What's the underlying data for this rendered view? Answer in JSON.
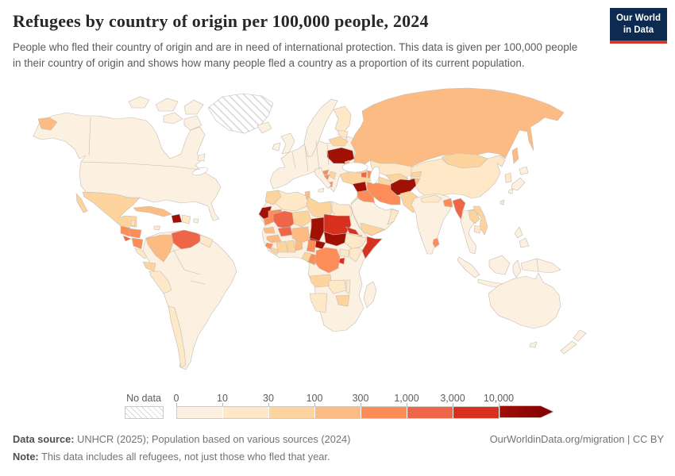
{
  "header": {
    "title": "Refugees by country of origin per 100,000 people, 2024",
    "subtitle": "People who fled their country of origin and are in need of international protection. This data is given per 100,000 people in their country of origin and shows how many people fled a country as a proportion of its current population.",
    "logo": {
      "line1": "Our World",
      "line2": "in Data"
    }
  },
  "legend": {
    "no_data_label": "No data",
    "ticks": [
      "0",
      "10",
      "30",
      "100",
      "300",
      "1,000",
      "3,000",
      "10,000"
    ]
  },
  "colors": {
    "bins": [
      "#fcf0e0",
      "#fee8c8",
      "#fdd49e",
      "#fdbb84",
      "#fc8d59",
      "#ef6548",
      "#d7301f",
      "#a01005"
    ],
    "arrow_tip": "#7f0000",
    "border": "#c3bdb4",
    "sea": "#ffffff",
    "no_data_stroke": "#d8d8d6",
    "logo_bg": "#0d2b51",
    "logo_stripe": "#d0392b"
  },
  "footer": {
    "data_source_label": "Data source:",
    "data_source_text": " UNHCR (2025); Population based on various sources (2024)",
    "note_label": "Note:",
    "note_text": " This data includes all refugees, not just those who fled that year.",
    "link": "OurWorldinData.org/migration | CC BY"
  },
  "chart_data": {
    "type": "heatmap",
    "subtype": "choropleth-world-map",
    "title": "Refugees by country of origin per 100,000 people, 2024",
    "unit": "refugees per 100,000 people of origin-country population",
    "scale": "log-binned",
    "bin_edges": [
      0,
      10,
      30,
      100,
      300,
      1000,
      3000,
      10000
    ],
    "bin_labels": [
      "0-10",
      "10-30",
      "30-100",
      "100-300",
      "300-1,000",
      "1,000-3,000",
      "3,000-10,000",
      ">10,000"
    ],
    "legend_position": "bottom",
    "regions": {
      "north-america": 0,
      "arctic-islands": 0,
      "newfoundland": 0,
      "greenland": "no_data",
      "iceland": 0,
      "mexico": 2,
      "guatemala": 4,
      "belize": 1,
      "honduras": 4,
      "el-salvador": 5,
      "nicaragua": 4,
      "costa-rica": 1,
      "panama": 1,
      "cuba": 3,
      "jamaica": 1,
      "haiti": 7,
      "dominican-republic": 1,
      "puerto-rico": 0,
      "south-america": 0,
      "venezuela": 5,
      "colombia": 3,
      "ecuador": 2,
      "peru": 1,
      "chile": 1,
      "guyanas": 1,
      "europe": 0,
      "uk": 0,
      "ireland": 0,
      "scandinavia": 0,
      "finland": 1,
      "baltics": 1,
      "belarus": 2,
      "ukraine": 7,
      "moldova": 3,
      "croatia": 4,
      "bosnia": 4,
      "serbia": 2,
      "albania": 4,
      "italy": 0,
      "russia": 3,
      "turkey": 2,
      "georgia": 2,
      "armenia": 5,
      "azerbaijan": 4,
      "syria": 7,
      "iraq": 4,
      "iran": 4,
      "jordan-israel": 1,
      "arabia": 0,
      "yemen": 2,
      "oman": 1,
      "kazakhstan": 1,
      "uzbekistan": 2,
      "turkmenistan": 2,
      "kyrgyzstan": 2,
      "tajikistan": 3,
      "afghanistan": 7,
      "pakistan": 2,
      "india": 0,
      "nepal": 1,
      "bangladesh": 4,
      "sri-lanka": 4,
      "myanmar": 5,
      "indochina": 0,
      "laos": 2,
      "vietnam": 2,
      "cambodia": 1,
      "china": 1,
      "mongolia": 2,
      "korea": 1,
      "japan": 0,
      "taiwan": 1,
      "philippines": 0,
      "indonesia": 0,
      "new-guinea": 0,
      "australia": 0,
      "new-zealand": 0,
      "africa": 0,
      "madagascar": 0,
      "morocco": 2,
      "western-sahara": 7,
      "algeria": 1,
      "tunisia": 3,
      "libya": 2,
      "egypt": 1,
      "mauritania": 4,
      "mali": 5,
      "niger": 2,
      "chad": 7,
      "sudan": 6,
      "south-sudan": 7,
      "eritrea": 6,
      "djibouti": 3,
      "ethiopia": 1,
      "somalia": 6,
      "senegal": 3,
      "guinea": 3,
      "sierra-leone": 4,
      "liberia": 2,
      "ivory-coast": 2,
      "ghana": 2,
      "togo-benin": 3,
      "burkina-faso": 5,
      "nigeria": 3,
      "cameroon": 4,
      "central-african-republic": 7,
      "gabon": 2,
      "congo": 4,
      "drc": 4,
      "uganda": 1,
      "kenya": 1,
      "rwanda-burundi": 6,
      "angola": 2,
      "zambia": 1,
      "malawi": 1,
      "zimbabwe": 2,
      "namibia": 1
    }
  }
}
